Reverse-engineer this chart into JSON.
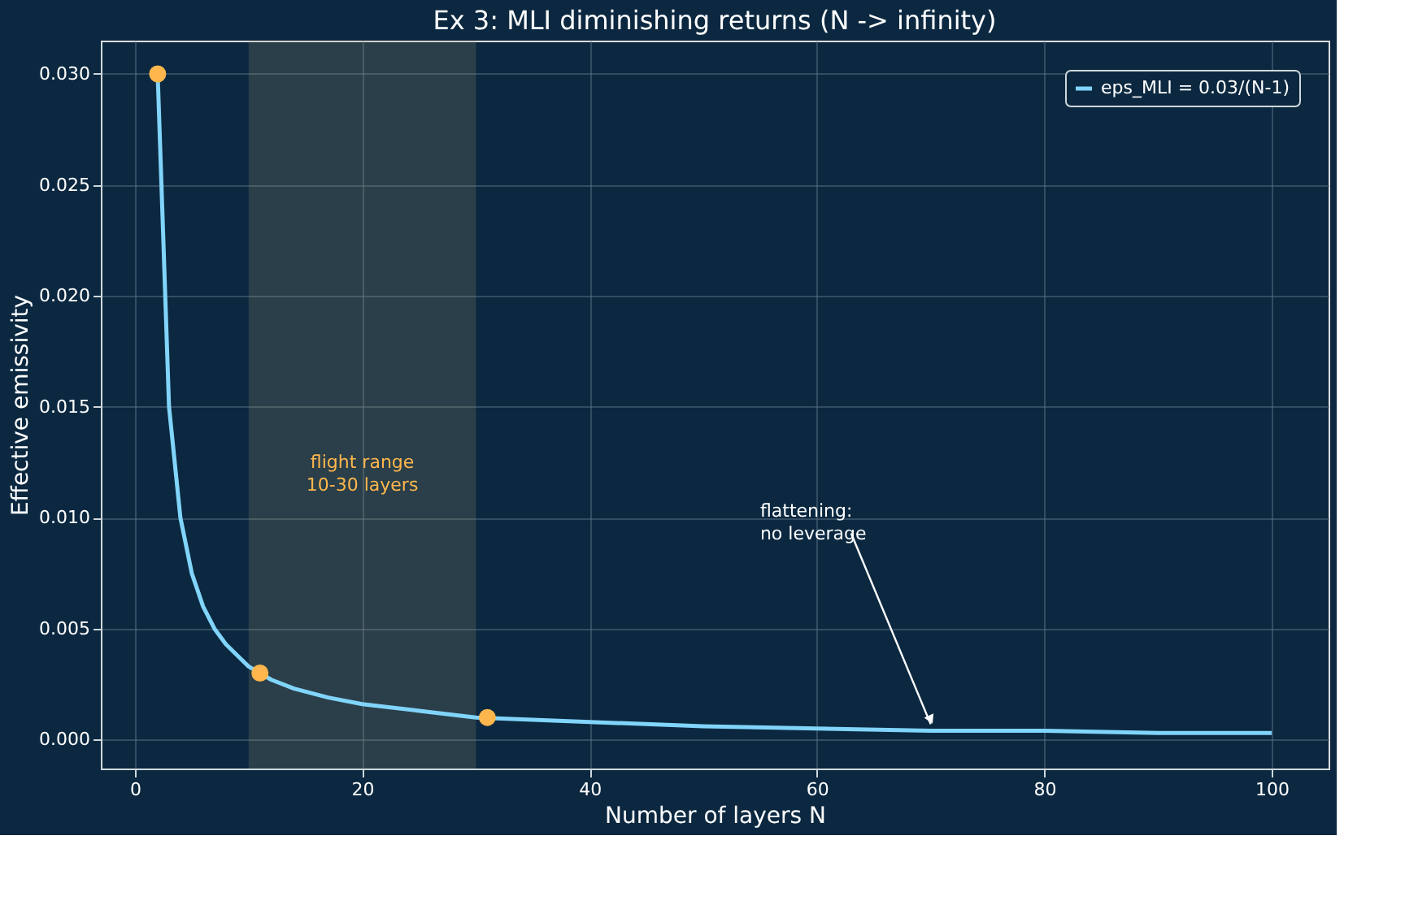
{
  "chart_data": {
    "type": "line",
    "title": "Ex 3: MLI diminishing returns (N -> infinity)",
    "xlabel": "Number of layers N",
    "ylabel": "Effective emissivity",
    "series": [
      {
        "name": "eps_MLI = 0.03/(N-1)",
        "color": "#81d4fa",
        "x": [
          2,
          3,
          4,
          5,
          6,
          7,
          8,
          9,
          10,
          12,
          14,
          17,
          20,
          25,
          30,
          40,
          50,
          60,
          70,
          80,
          90,
          100
        ],
        "values": [
          0.03,
          0.015,
          0.01,
          0.0075,
          0.006,
          0.005,
          0.0043,
          0.0038,
          0.0033,
          0.0027,
          0.0023,
          0.0019,
          0.0016,
          0.0013,
          0.001,
          0.0008,
          0.0006,
          0.0005,
          0.0004,
          0.0004,
          0.0003,
          0.0003
        ]
      },
      {
        "color": "#ffb74d",
        "type": "scatter",
        "x": [
          2,
          11,
          31
        ],
        "values": [
          0.03,
          0.003,
          0.001
        ]
      }
    ],
    "xlim": [
      -3,
      105
    ],
    "xticks": [
      0,
      20,
      40,
      60,
      80,
      100
    ],
    "ylim": [
      -0.0013,
      0.0315
    ],
    "yticks": [
      {
        "value": 0,
        "label": "0.000"
      },
      {
        "value": 0.005,
        "label": "0.005"
      },
      {
        "value": 0.01,
        "label": "0.010"
      },
      {
        "value": 0.015,
        "label": "0.015"
      },
      {
        "value": 0.02,
        "label": "0.020"
      },
      {
        "value": 0.025,
        "label": "0.025"
      },
      {
        "value": 0.03,
        "label": "0.030"
      }
    ],
    "bands": [
      {
        "axis": "x",
        "from": 10,
        "to": 30,
        "color": "#a89a70"
      }
    ],
    "annotations": [
      "flight range\n10-30 layers",
      {
        "text": "flattening:\nno leverage",
        "x": 70,
        "y": 0.0004
      }
    ],
    "grid": true,
    "legend": "top right"
  }
}
